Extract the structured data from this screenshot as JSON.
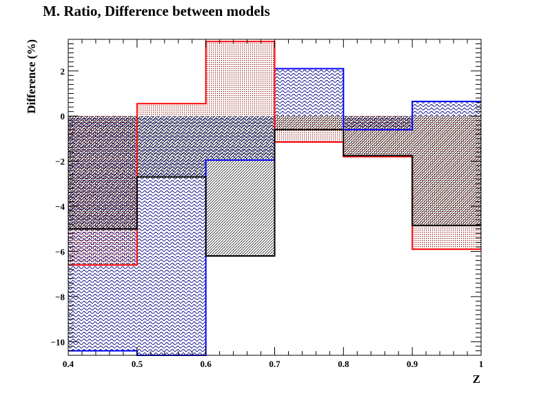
{
  "chart_data": {
    "type": "histogram-step",
    "title": "M. Ratio, Difference between models",
    "xlabel": "Z",
    "ylabel": "Difference (%)",
    "xlim": [
      0.4,
      1.0
    ],
    "ylim": [
      -10.6,
      3.4
    ],
    "x_ticks": [
      "0.4",
      "0.5",
      "0.6",
      "0.7",
      "0.8",
      "0.9",
      "1"
    ],
    "y_ticks": [
      "2",
      "0",
      "−2",
      "−4",
      "−6",
      "−8",
      "−10"
    ],
    "bin_edges": [
      0.4,
      0.5,
      0.6,
      0.7,
      0.8,
      0.9,
      1.0
    ],
    "series": [
      {
        "color": "#0000ff",
        "fill": "#000080",
        "pattern": "wave",
        "values": [
          -10.4,
          -10.6,
          -1.95,
          2.1,
          -0.6,
          0.65
        ]
      },
      {
        "color": "#ff0000",
        "fill": "#800000",
        "pattern": "dots",
        "values": [
          -6.6,
          0.55,
          3.3,
          -1.15,
          -1.8,
          -5.9
        ]
      },
      {
        "color": "#000000",
        "fill": "#000000",
        "pattern": "hatch",
        "values": [
          -5.0,
          -2.7,
          -6.2,
          -0.6,
          -1.75,
          -4.85
        ]
      }
    ],
    "grid": false,
    "legend": "none"
  }
}
